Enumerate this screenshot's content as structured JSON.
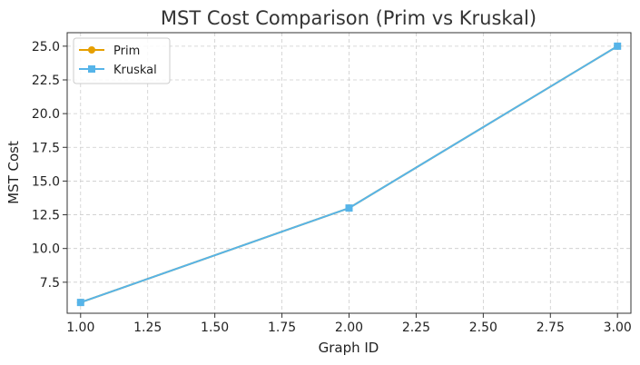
{
  "chart_data": {
    "type": "line",
    "title": "MST Cost Comparison (Prim vs Kruskal)",
    "xlabel": "Graph ID",
    "ylabel": "MST Cost",
    "x": [
      1,
      2,
      3
    ],
    "xlim": [
      0.95,
      3.05
    ],
    "ylim": [
      5.2,
      26.0
    ],
    "xticks": [
      1.0,
      1.25,
      1.5,
      1.75,
      2.0,
      2.25,
      2.5,
      2.75,
      3.0
    ],
    "xtick_labels": [
      "1.00",
      "1.25",
      "1.50",
      "1.75",
      "2.00",
      "2.25",
      "2.50",
      "2.75",
      "3.00"
    ],
    "yticks": [
      7.5,
      10.0,
      12.5,
      15.0,
      17.5,
      20.0,
      22.5,
      25.0
    ],
    "ytick_labels": [
      "7.5",
      "10.0",
      "12.5",
      "15.0",
      "17.5",
      "20.0",
      "22.5",
      "25.0"
    ],
    "grid": true,
    "grid_style": "dashed",
    "legend_position": "top-left",
    "series": [
      {
        "name": "Prim",
        "values": [
          6,
          13,
          25
        ],
        "color": "#E69F00",
        "marker": "circle"
      },
      {
        "name": "Kruskal",
        "values": [
          6,
          13,
          25
        ],
        "color": "#56B4E9",
        "marker": "square"
      }
    ]
  }
}
